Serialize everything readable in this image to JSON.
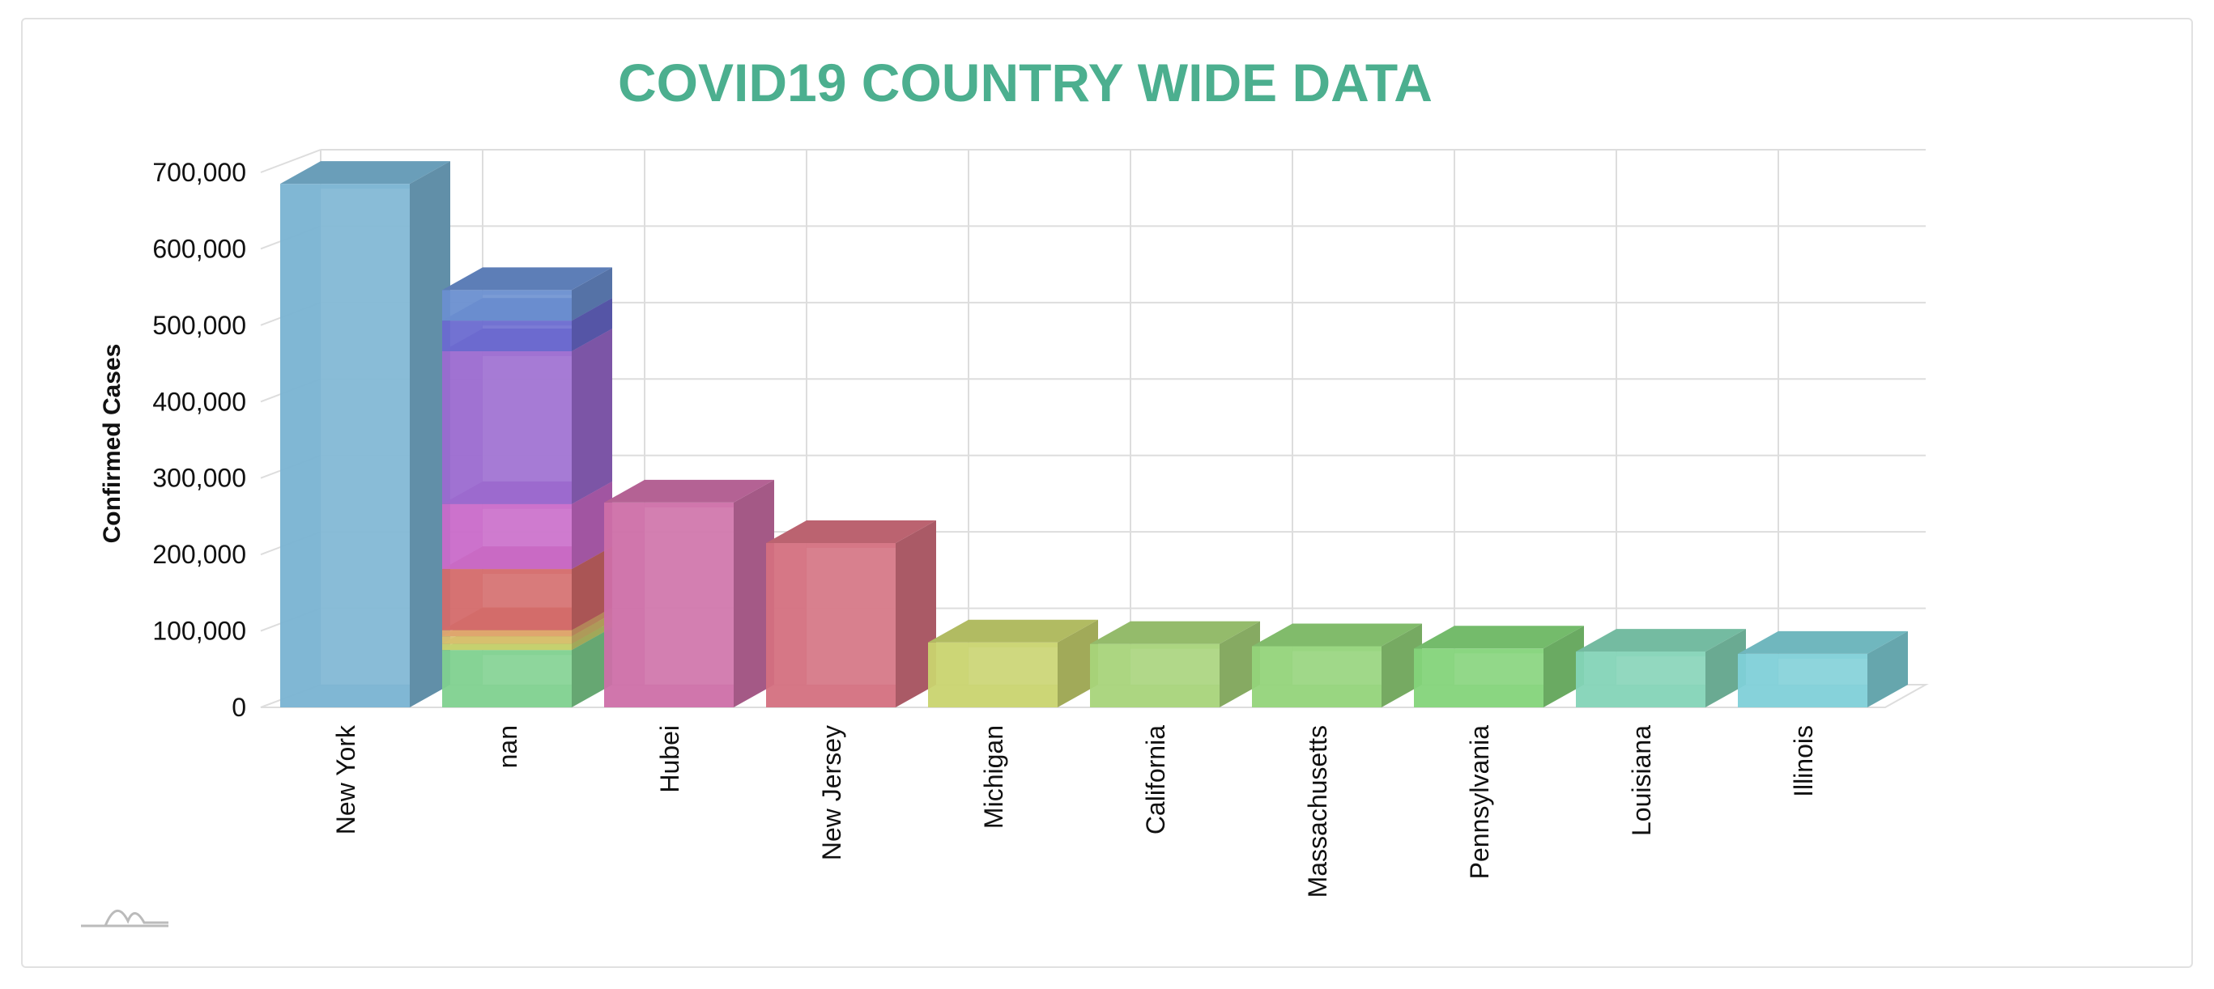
{
  "chart_data": {
    "type": "bar",
    "title": "COVID19 COUNTRY WIDE DATA",
    "xlabel": "",
    "ylabel": "Confirmed Cases",
    "ylim": [
      0,
      700000
    ],
    "yticks": [
      0,
      100000,
      200000,
      300000,
      400000,
      500000,
      600000,
      700000
    ],
    "ytick_labels": [
      "0",
      "100,000",
      "200,000",
      "300,000",
      "400,000",
      "500,000",
      "600,000",
      "700,000"
    ],
    "grid": true,
    "legend": "none",
    "style": "3d",
    "categories": [
      "New York",
      "nan",
      "Hubei",
      "New Jersey",
      "Michigan",
      "California",
      "Massachusetts",
      "Pennsylvania",
      "Louisiana",
      "Illinois"
    ],
    "values": [
      685000,
      75000,
      268000,
      215000,
      85000,
      83000,
      80000,
      77000,
      73000,
      70000
    ],
    "stacked_category": "nan",
    "stacked_segments": [
      {
        "value": 75000,
        "color": "#7fd18f"
      },
      {
        "value": 8000,
        "color": "#c9d26f"
      },
      {
        "value": 10000,
        "color": "#d9c06f"
      },
      {
        "value": 8000,
        "color": "#e0a56f"
      },
      {
        "value": 80000,
        "color": "#d46a6a"
      },
      {
        "value": 85000,
        "color": "#c96ac9"
      },
      {
        "value": 200000,
        "color": "#9b6ad0"
      },
      {
        "value": 40000,
        "color": "#6a6ad0"
      },
      {
        "value": 40000,
        "color": "#6a8fd0"
      }
    ],
    "colors": [
      "#79b3d2",
      "#7fd18f",
      "#cd6fa8",
      "#d4707f",
      "#c9d46f",
      "#a8d47a",
      "#93d47a",
      "#84d47a",
      "#84d4b7",
      "#7fd0d8"
    ]
  }
}
